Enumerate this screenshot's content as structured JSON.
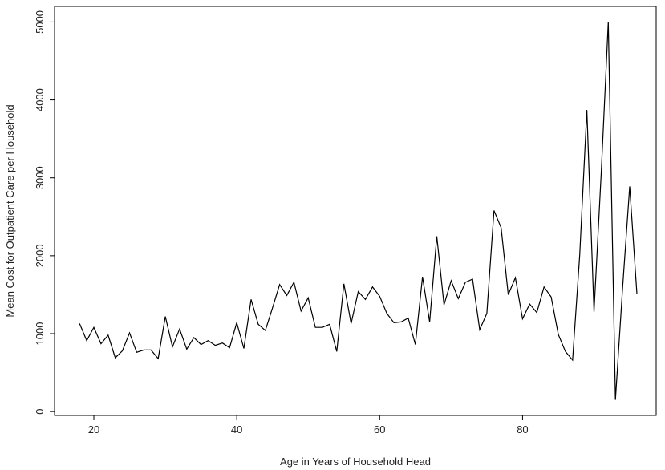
{
  "chart_data": {
    "type": "line",
    "title": "",
    "xlabel": "Age in Years of Household Head",
    "ylabel": "Mean Cost for Outpatient Care per Household",
    "xlim": [
      14.5,
      98.7
    ],
    "ylim": [
      -50,
      5200
    ],
    "xticks": [
      20,
      40,
      60,
      80
    ],
    "xtick_labels": [
      "20",
      "40",
      "60",
      "80"
    ],
    "yticks": [
      0,
      1000,
      2000,
      3000,
      4000,
      5000
    ],
    "ytick_labels": [
      "0",
      "1000",
      "2000",
      "3000",
      "4000",
      "5000"
    ],
    "grid": false,
    "legend": "none",
    "line_color": "#000000",
    "series": [
      {
        "x": [
          18,
          19,
          20,
          21,
          22,
          23,
          24,
          25,
          26,
          27,
          28,
          29,
          30,
          31,
          32,
          33,
          34,
          35,
          36,
          37,
          38,
          39,
          40,
          41,
          42,
          43,
          44,
          45,
          46,
          47,
          48,
          49,
          50,
          51,
          52,
          53,
          54,
          55,
          56,
          57,
          58,
          59,
          60,
          61,
          62,
          63,
          64,
          65,
          66,
          67,
          68,
          69,
          70,
          71,
          72,
          73,
          74,
          75,
          76,
          77,
          78,
          79,
          80,
          81,
          82,
          83,
          84,
          85,
          86,
          87,
          88,
          89,
          90,
          91,
          92,
          93,
          94,
          95,
          96
        ],
        "values": [
          1130,
          910,
          1080,
          870,
          980,
          690,
          780,
          1010,
          760,
          790,
          790,
          680,
          1220,
          830,
          1060,
          800,
          950,
          860,
          910,
          850,
          880,
          820,
          1140,
          810,
          1440,
          1120,
          1040,
          1330,
          1630,
          1490,
          1660,
          1290,
          1460,
          1080,
          1080,
          1120,
          770,
          1640,
          1130,
          1540,
          1440,
          1600,
          1480,
          1260,
          1140,
          1150,
          1200,
          860,
          1730,
          1150,
          2250,
          1370,
          1680,
          1450,
          1660,
          1700,
          1050,
          1260,
          2580,
          2360,
          1500,
          1720,
          1190,
          1380,
          1270,
          1600,
          1470,
          990,
          770,
          660,
          2010,
          3870,
          1280,
          3040,
          5000,
          150,
          1580,
          2890,
          1510
        ]
      }
    ]
  }
}
